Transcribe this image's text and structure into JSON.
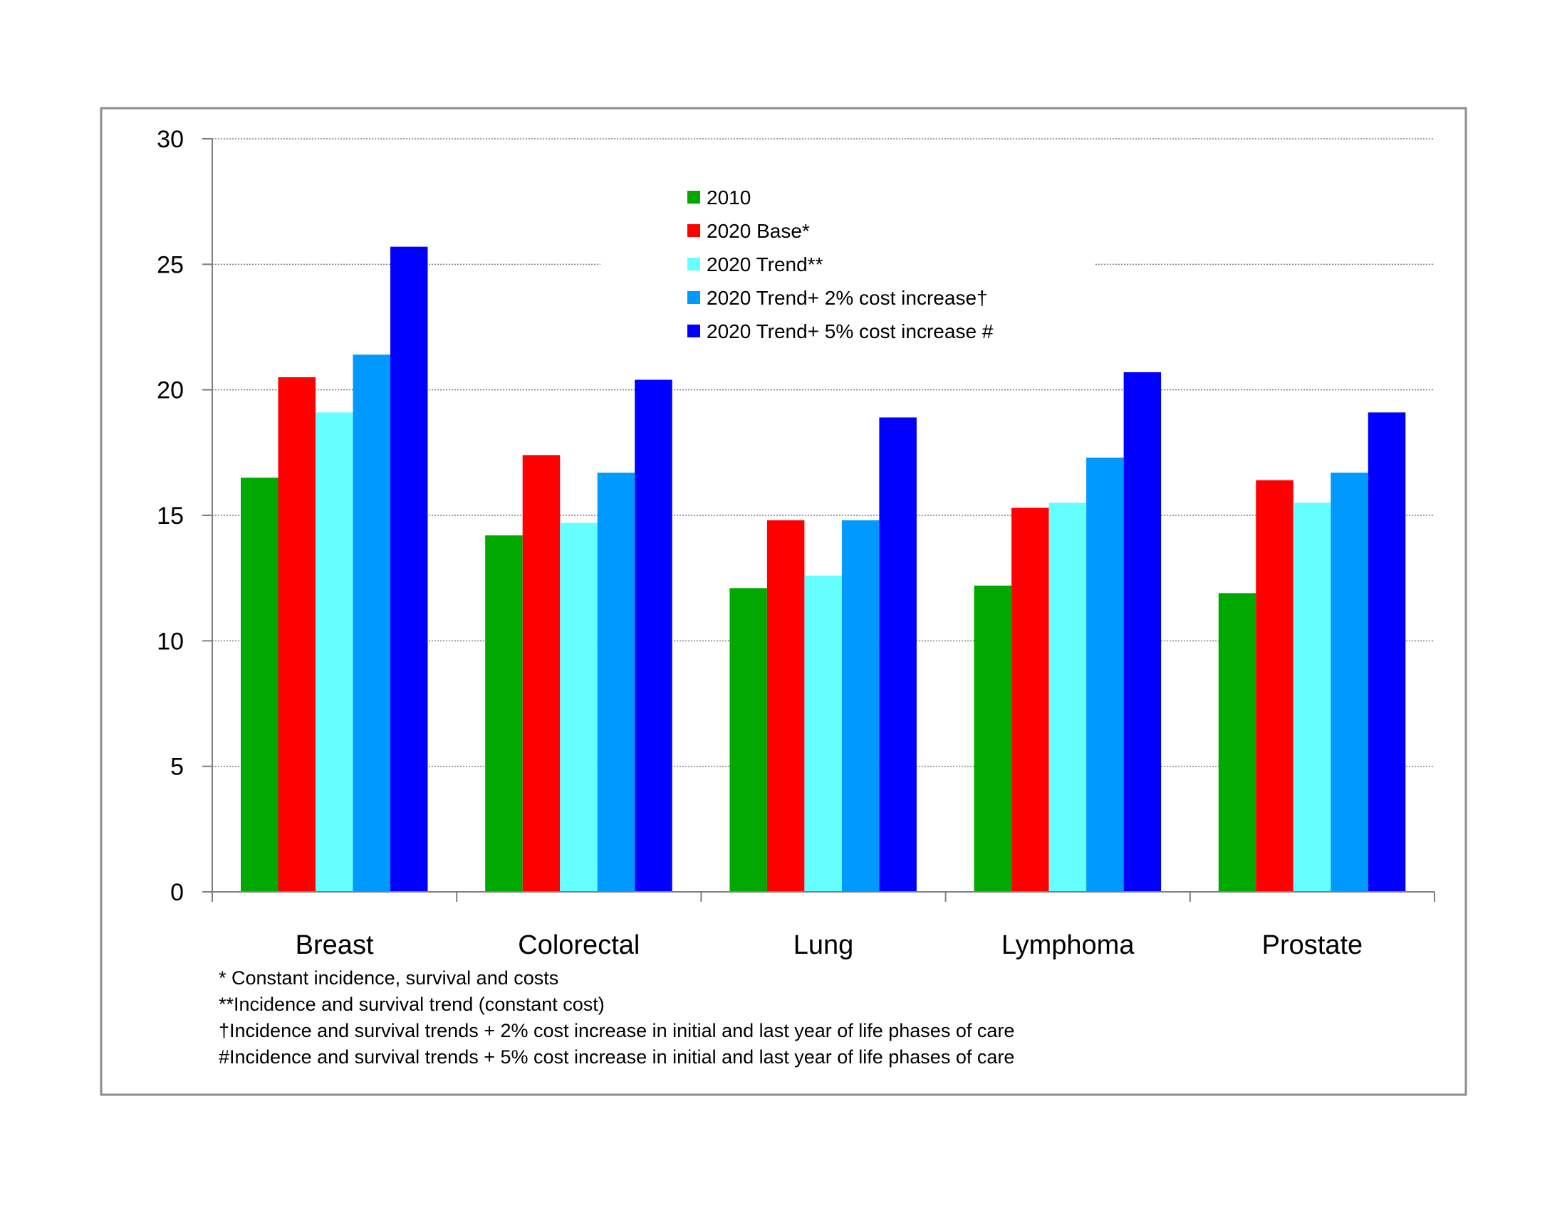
{
  "chart_data": {
    "type": "bar",
    "title": "",
    "xlabel": "",
    "ylabel": "",
    "ylim": [
      0,
      30
    ],
    "yticks": [
      0,
      5,
      10,
      15,
      20,
      25,
      30
    ],
    "grid": true,
    "legend_position": "top-center",
    "categories": [
      "Breast",
      "Colorectal",
      "Lung",
      "Lymphoma",
      "Prostate"
    ],
    "series": [
      {
        "name": "2010",
        "color": "#00a800",
        "values": [
          16.5,
          14.2,
          12.1,
          12.2,
          11.9
        ]
      },
      {
        "name": "2020 Base*",
        "color": "#ff0000",
        "values": [
          20.5,
          17.4,
          14.8,
          15.3,
          16.4
        ]
      },
      {
        "name": "2020 Trend**",
        "color": "#66ffff",
        "values": [
          19.1,
          14.7,
          12.6,
          15.5,
          15.5
        ]
      },
      {
        "name": "2020 Trend+ 2% cost increase†",
        "color": "#0099ff",
        "values": [
          21.4,
          16.7,
          14.8,
          17.3,
          16.7
        ]
      },
      {
        "name": "2020 Trend+ 5% cost increase #",
        "color": "#0000ff",
        "values": [
          25.7,
          20.4,
          18.9,
          20.7,
          19.1
        ]
      }
    ],
    "footnotes": [
      "* Constant incidence, survival and costs",
      "**Incidence and survival trend (constant cost)",
      "†Incidence and survival trends + 2% cost increase in initial and last year of life phases of care",
      "#Incidence and survival trends + 5% cost increase in initial and last year of life phases of care"
    ]
  }
}
